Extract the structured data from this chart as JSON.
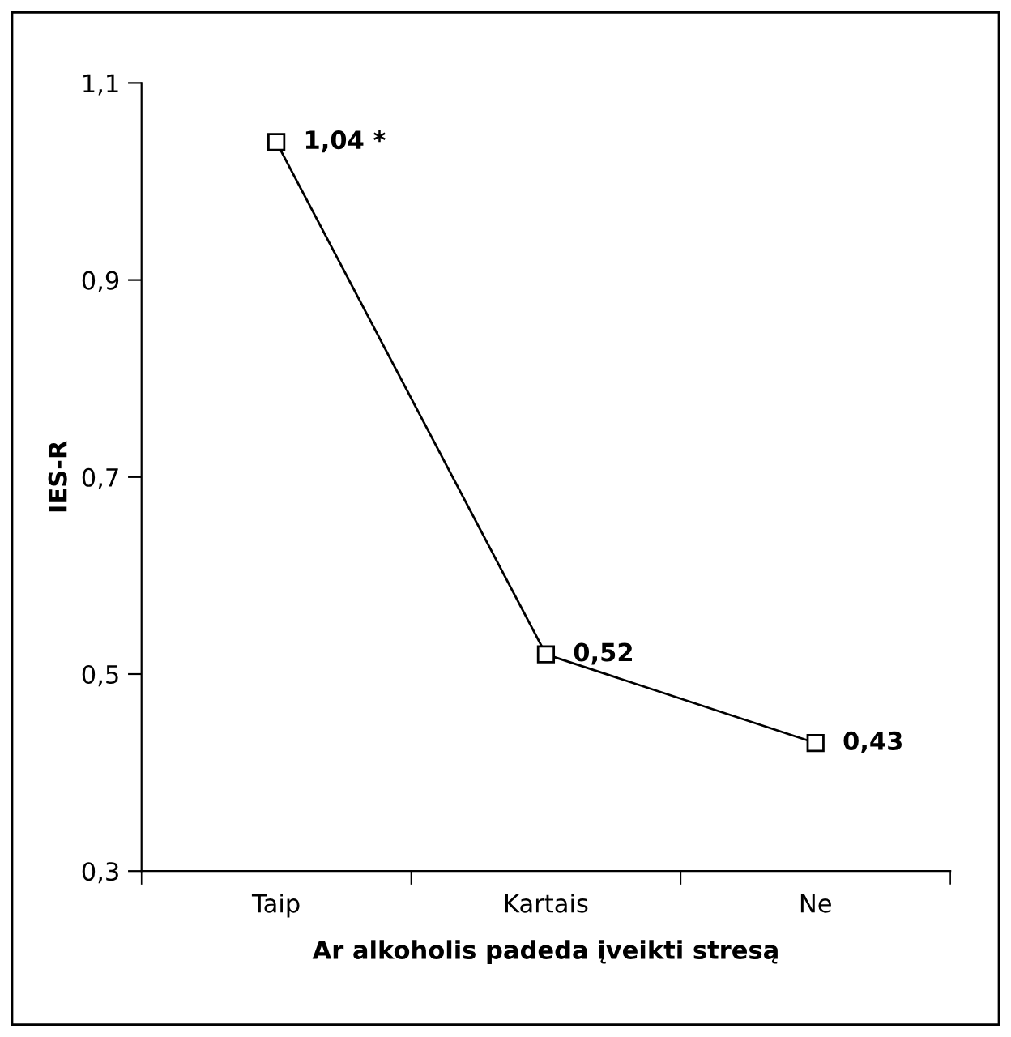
{
  "chart_data": {
    "type": "line",
    "xlabel": "Ar alkoholis padeda įveikti stresą",
    "ylabel": "IES-R",
    "categories": [
      "Taip",
      "Kartais",
      "Ne"
    ],
    "series": [
      {
        "color": "#000000",
        "values": [
          1.04,
          0.52,
          0.43
        ],
        "value_labels": [
          "1,04 *",
          "0,52",
          "0,43"
        ]
      }
    ],
    "ylim": [
      0.3,
      1.1
    ],
    "yticks": [
      {
        "value": 0.3,
        "label": "0,3"
      },
      {
        "value": 0.5,
        "label": "0,5"
      },
      {
        "value": 0.7,
        "label": "0,7"
      },
      {
        "value": 0.9,
        "label": "0,9"
      },
      {
        "value": 1.1,
        "label": "1,1"
      }
    ],
    "marker": "square",
    "line_style": "solid",
    "grid": false,
    "legend": false
  }
}
